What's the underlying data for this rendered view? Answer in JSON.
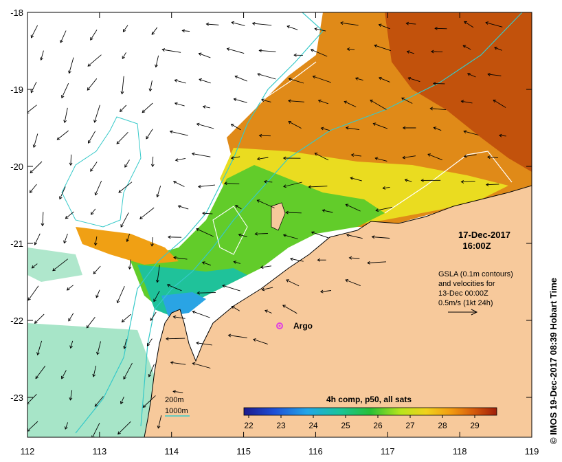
{
  "map": {
    "datetime_line1": "17-Dec-2017",
    "datetime_line2": "16:00Z",
    "gsla_lines": [
      "GSLA (0.1m contours)",
      "and velocities for",
      "13-Dec 00:00Z",
      "0.5m/s (1kt 24h)"
    ],
    "argo_label": "Argo",
    "contour_200": "200m",
    "contour_1000": "1000m",
    "colorbar_title": "4h comp, p50, all sats",
    "colorbar_ticks": [
      "22",
      "23",
      "24",
      "25",
      "26",
      "27",
      "28",
      "29"
    ],
    "credit": "© IMOS 19-Dec-2017 08:39 Hobart Time",
    "lon_ticks": [
      "112",
      "113",
      "114",
      "115",
      "116",
      "117",
      "118",
      "119"
    ],
    "lat_ticks": [
      "-18",
      "-19",
      "-20",
      "-21",
      "-22",
      "-23"
    ],
    "colors": {
      "land": "#f7c99b",
      "argo": "#e040e0",
      "contour_1000": "#36c9c9",
      "contour_200": "#9ad6d6",
      "gsla_contour": "#ffffff"
    }
  }
}
